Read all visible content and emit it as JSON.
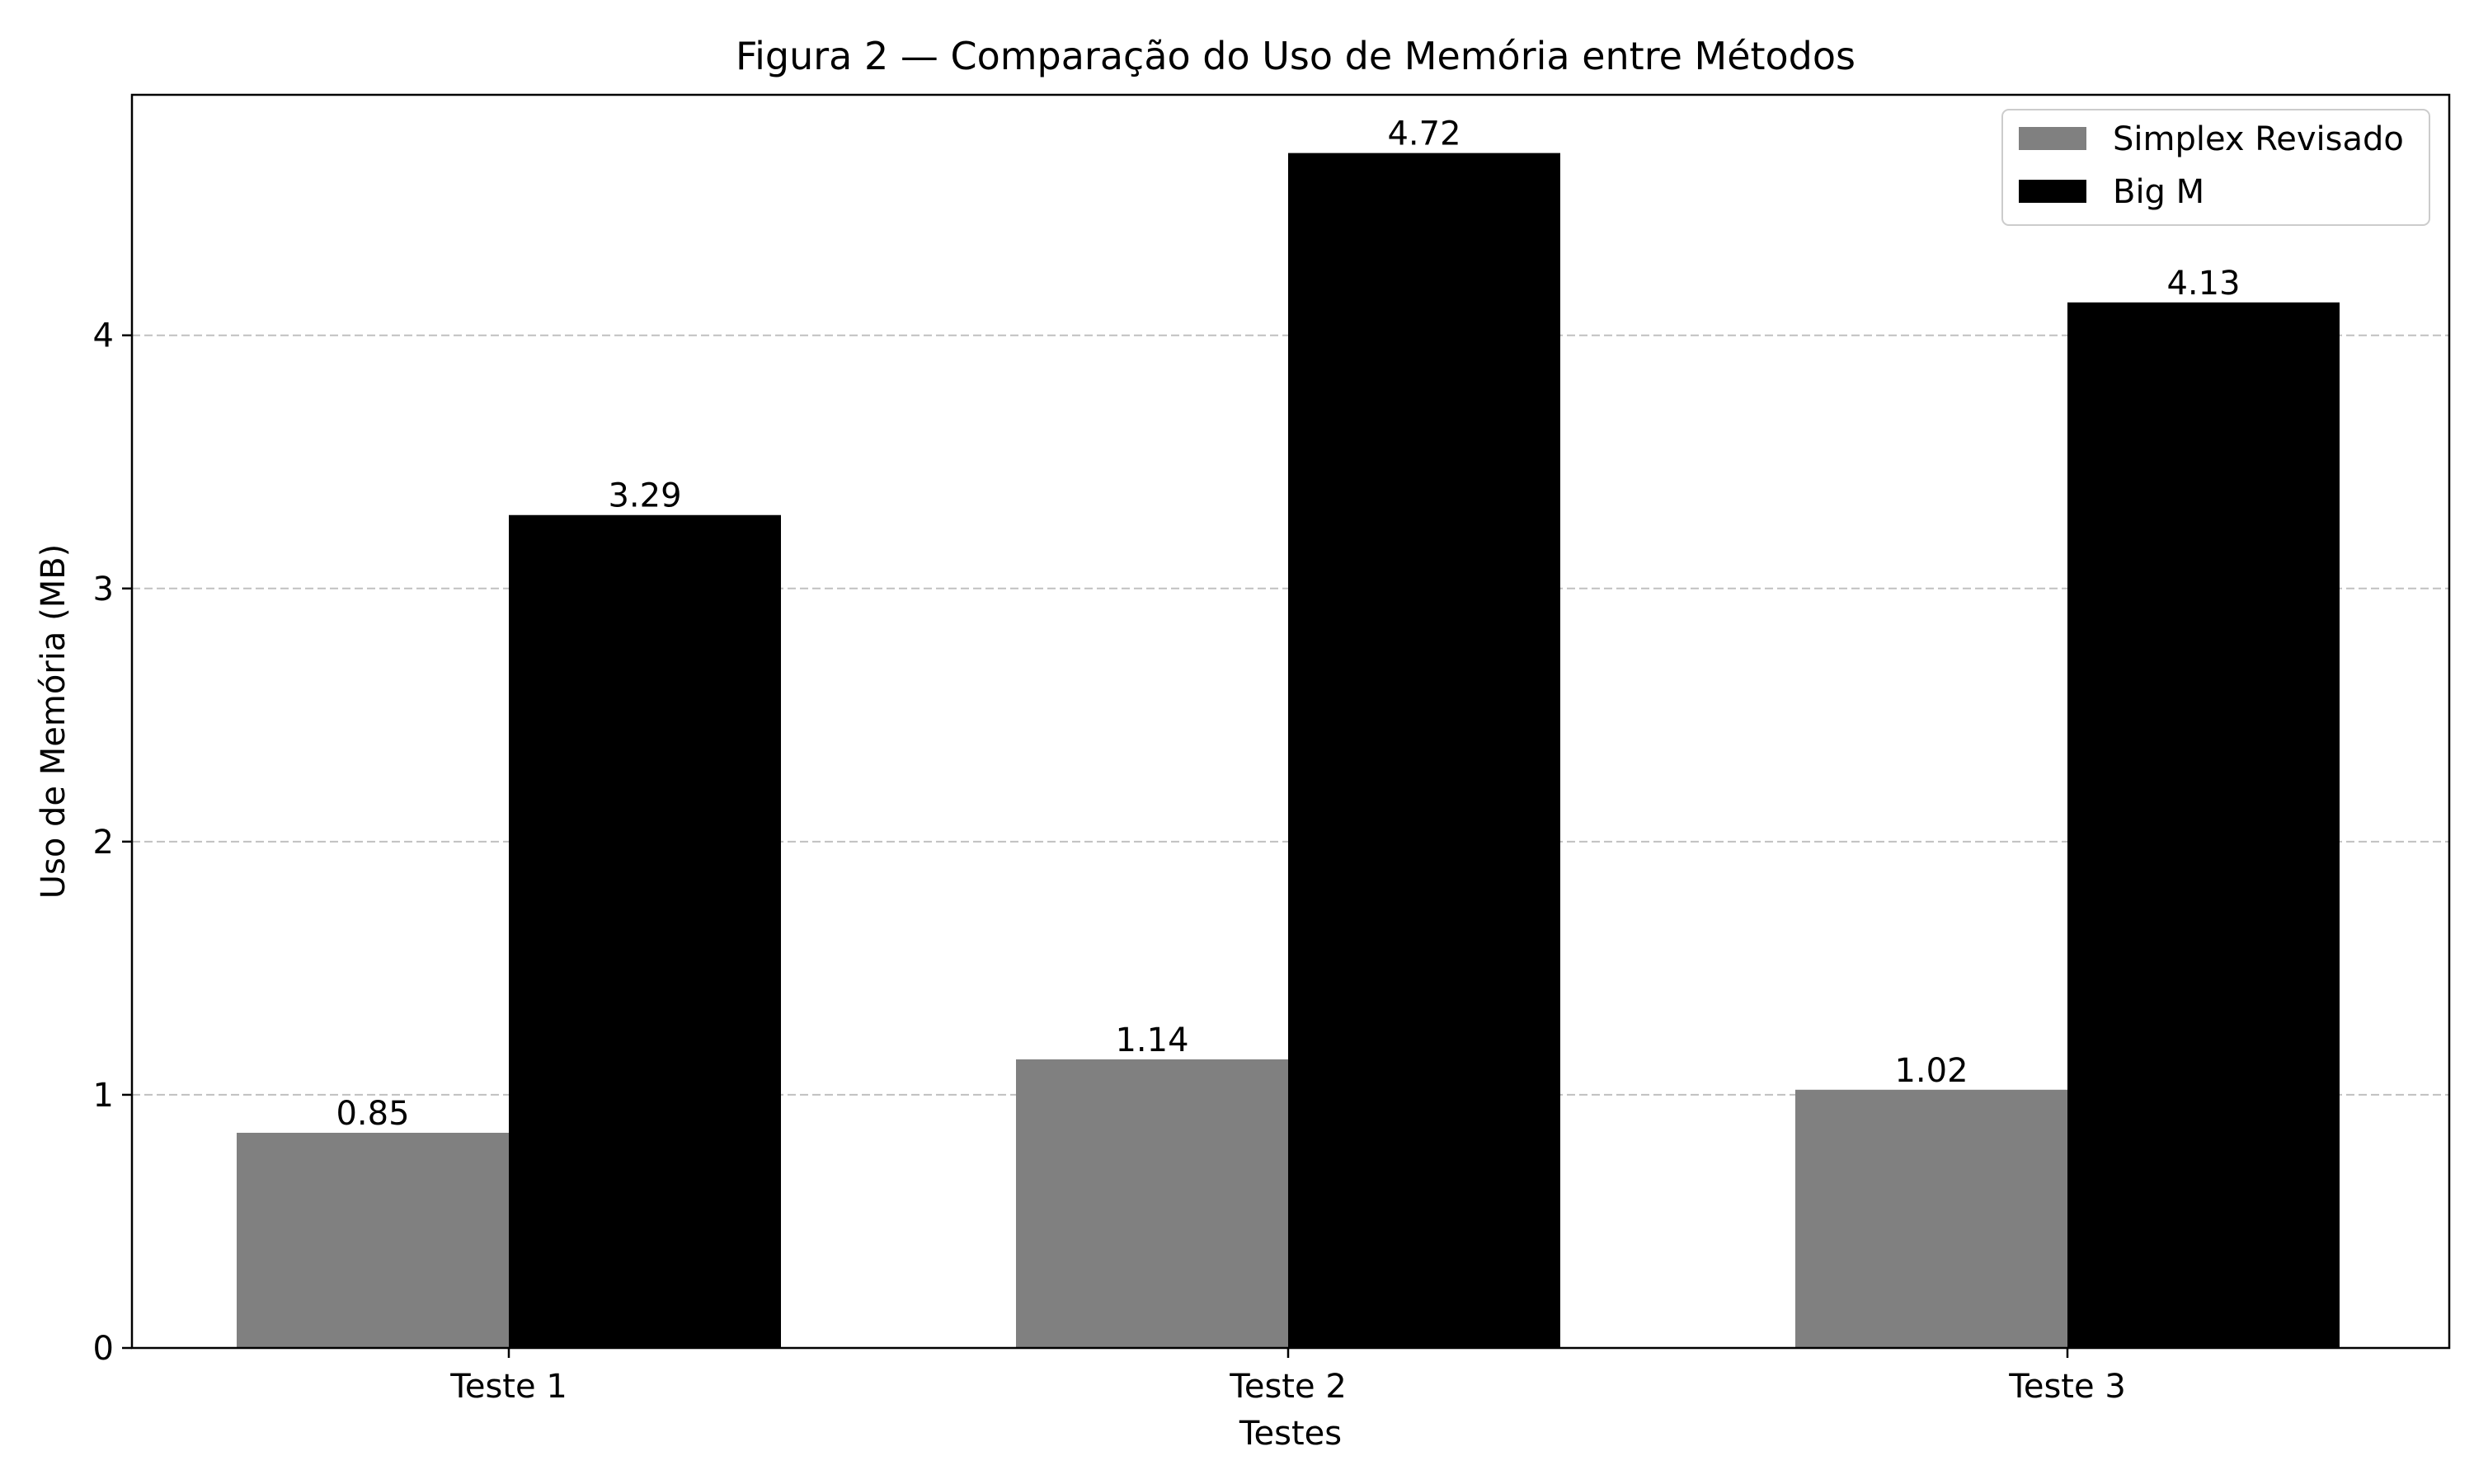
{
  "chart_data": {
    "type": "bar",
    "title": "Figura 2 — Comparação do Uso de Memória entre Métodos",
    "xlabel": "Testes",
    "ylabel": "Uso de Memória (MB)",
    "categories": [
      "Teste 1",
      "Teste 2",
      "Teste 3"
    ],
    "series": [
      {
        "name": "Simplex Revisado",
        "values": [
          0.85,
          1.14,
          1.02
        ],
        "color": "#808080"
      },
      {
        "name": "Big M",
        "values": [
          3.29,
          4.72,
          4.13
        ],
        "color": "#000000"
      }
    ],
    "value_labels": [
      [
        "0.85",
        "1.14",
        "1.02"
      ],
      [
        "3.29",
        "4.72",
        "4.13"
      ]
    ],
    "ylim": [
      0,
      4.95
    ],
    "yticks": [
      0,
      1,
      2,
      3,
      4
    ],
    "ytick_labels": [
      "0",
      "1",
      "2",
      "3",
      "4"
    ],
    "grid": "y-dashed",
    "grid_color": "#c0c0c0",
    "legend_position": "upper right"
  }
}
